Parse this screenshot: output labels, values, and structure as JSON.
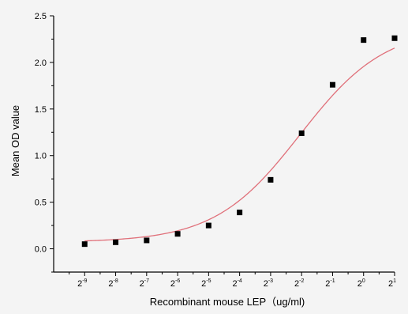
{
  "chart_data": {
    "type": "scatter",
    "xlabel": "Recombinant mouse LEP（ug/ml)",
    "ylabel": "Mean OD value",
    "x_scale": "log2",
    "x_exponents": [
      -9,
      -8,
      -7,
      -6,
      -5,
      -4,
      -3,
      -2,
      -1,
      0,
      1
    ],
    "x_tick_base": "2",
    "x_tick_exponents": [
      "-9",
      "-8",
      "-7",
      "-6",
      "-5",
      "-4",
      "-3",
      "-2",
      "-1",
      "0",
      "1"
    ],
    "y_ticks": [
      "0.0",
      "0.5",
      "1.0",
      "1.5",
      "2.0",
      "2.5"
    ],
    "ylim": [
      -0.25,
      2.5
    ],
    "xlim_exponent": [
      -10,
      1
    ],
    "grid": false,
    "series": [
      {
        "values": [
          0.05,
          0.07,
          0.09,
          0.16,
          0.25,
          0.39,
          0.74,
          1.24,
          1.76,
          2.24,
          2.26
        ],
        "marker": "square",
        "marker_color": "#000000"
      }
    ],
    "fit_curve": {
      "color": "#e0707a",
      "bottom": 0.07,
      "top": 2.38,
      "ec50_exponent": -2.05,
      "hill": 1.05
    }
  }
}
